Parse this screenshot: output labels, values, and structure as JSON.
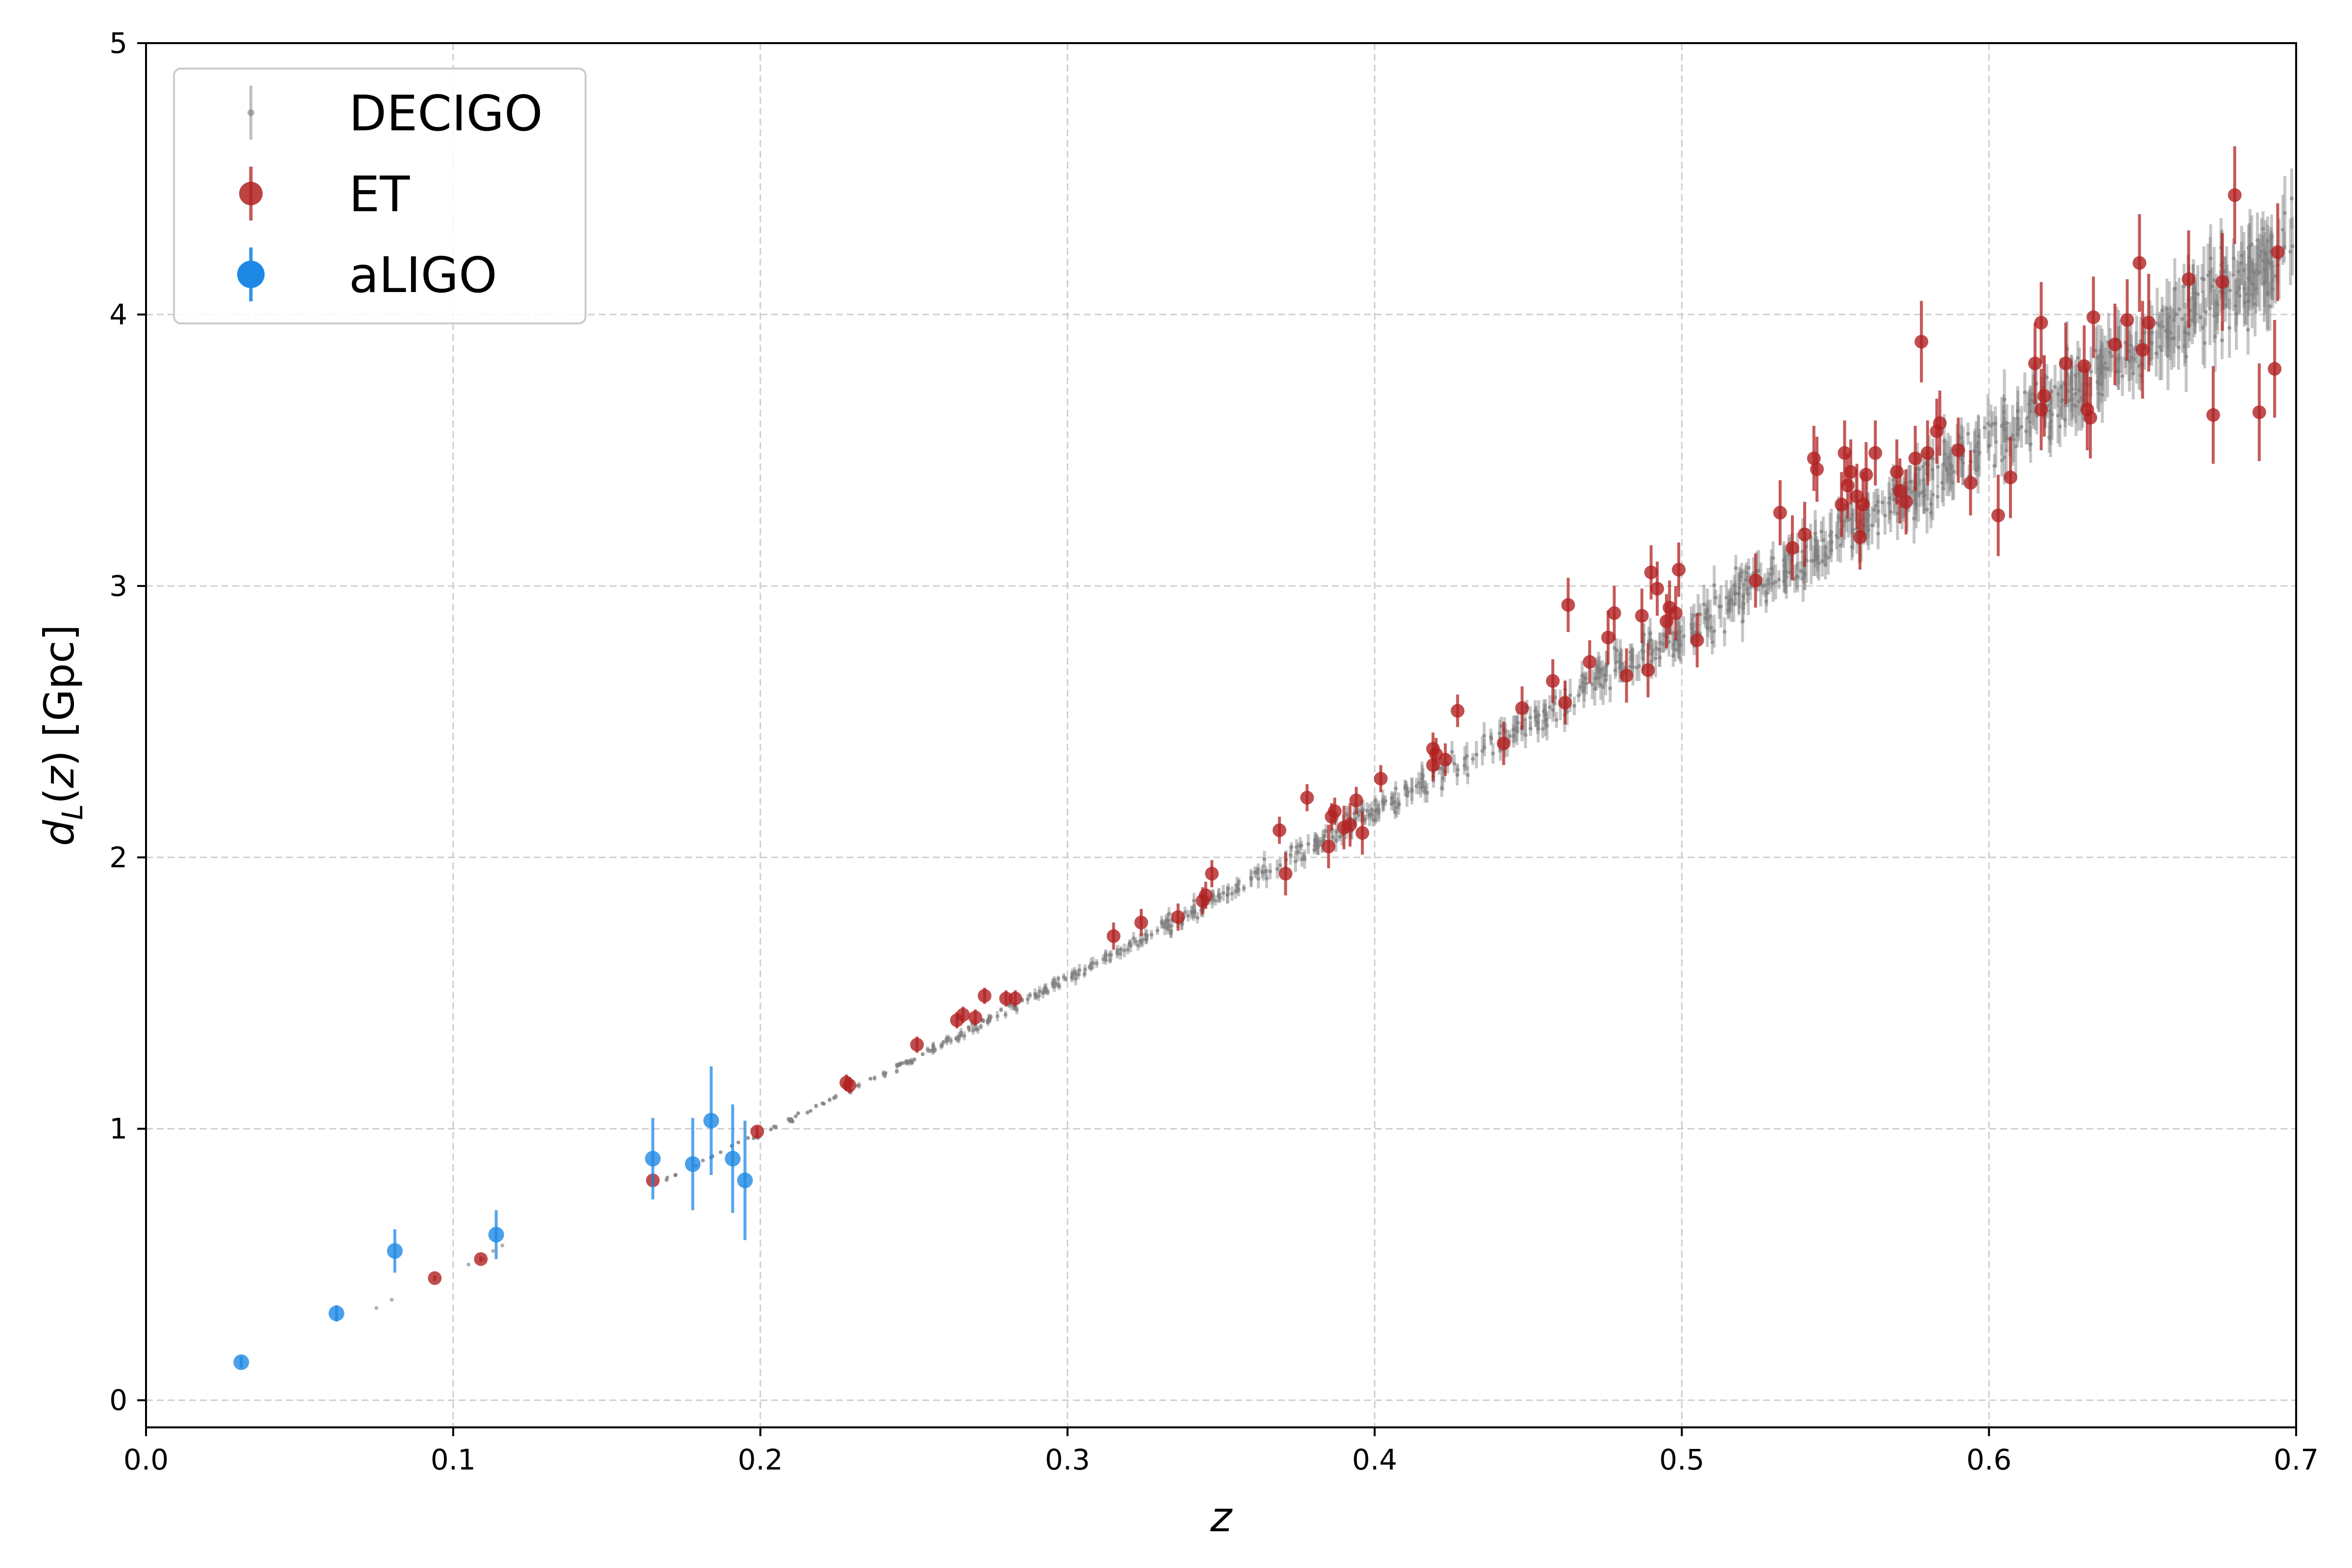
{
  "chart_data": {
    "type": "scatter",
    "xlabel": "z",
    "ylabel": "d_L(z) [Gpc]",
    "ylabel_parts": {
      "d": "d",
      "sub": "L",
      "rest1": "(",
      "z": "z",
      "rest2": ") [Gpc]"
    },
    "xlim": [
      0.0,
      0.7
    ],
    "ylim": [
      -0.1,
      5.0
    ],
    "xticks": [
      0.0,
      0.1,
      0.2,
      0.3,
      0.4,
      0.5,
      0.6,
      0.7
    ],
    "xtick_labels": [
      "0.0",
      "0.1",
      "0.2",
      "0.3",
      "0.4",
      "0.5",
      "0.6",
      "0.7"
    ],
    "yticks": [
      0,
      1,
      2,
      3,
      4,
      5
    ],
    "ytick_labels": [
      "0",
      "1",
      "2",
      "3",
      "4",
      "5"
    ],
    "grid": true,
    "legend_position": "top-left",
    "series": [
      {
        "name": "DECIGO",
        "color": "#7f7f7f",
        "marker": "small-dot",
        "z_range": [
          0.16,
          0.7
        ],
        "description_count": 1000
      },
      {
        "name": "ET",
        "color": "#b22222",
        "marker": "circle",
        "points": [
          [
            0.094,
            0.45,
            0.01
          ],
          [
            0.109,
            0.52,
            0.01
          ],
          [
            0.165,
            0.81,
            0.02
          ],
          [
            0.199,
            0.99,
            0.02
          ],
          [
            0.228,
            1.17,
            0.03
          ],
          [
            0.229,
            1.16,
            0.03
          ],
          [
            0.251,
            1.31,
            0.03
          ],
          [
            0.264,
            1.4,
            0.03
          ],
          [
            0.266,
            1.42,
            0.03
          ],
          [
            0.27,
            1.41,
            0.03
          ],
          [
            0.273,
            1.49,
            0.03
          ],
          [
            0.28,
            1.48,
            0.03
          ],
          [
            0.283,
            1.48,
            0.03
          ],
          [
            0.315,
            1.71,
            0.05
          ],
          [
            0.324,
            1.76,
            0.05
          ],
          [
            0.336,
            1.78,
            0.05
          ],
          [
            0.344,
            1.84,
            0.05
          ],
          [
            0.345,
            1.86,
            0.05
          ],
          [
            0.347,
            1.94,
            0.05
          ],
          [
            0.369,
            2.1,
            0.05
          ],
          [
            0.371,
            1.94,
            0.08
          ],
          [
            0.378,
            2.22,
            0.05
          ],
          [
            0.385,
            2.04,
            0.08
          ],
          [
            0.386,
            2.15,
            0.05
          ],
          [
            0.387,
            2.17,
            0.05
          ],
          [
            0.39,
            2.11,
            0.08
          ],
          [
            0.392,
            2.12,
            0.08
          ],
          [
            0.394,
            2.21,
            0.05
          ],
          [
            0.396,
            2.09,
            0.08
          ],
          [
            0.402,
            2.29,
            0.05
          ],
          [
            0.419,
            2.34,
            0.06
          ],
          [
            0.419,
            2.4,
            0.06
          ],
          [
            0.42,
            2.38,
            0.06
          ],
          [
            0.423,
            2.36,
            0.06
          ],
          [
            0.427,
            2.54,
            0.06
          ],
          [
            0.442,
            2.42,
            0.08
          ],
          [
            0.448,
            2.55,
            0.08
          ],
          [
            0.458,
            2.65,
            0.08
          ],
          [
            0.462,
            2.57,
            0.08
          ],
          [
            0.463,
            2.93,
            0.1
          ],
          [
            0.47,
            2.72,
            0.08
          ],
          [
            0.476,
            2.81,
            0.1
          ],
          [
            0.478,
            2.9,
            0.1
          ],
          [
            0.482,
            2.67,
            0.1
          ],
          [
            0.487,
            2.89,
            0.1
          ],
          [
            0.489,
            2.69,
            0.1
          ],
          [
            0.49,
            3.05,
            0.1
          ],
          [
            0.492,
            2.99,
            0.1
          ],
          [
            0.495,
            2.87,
            0.1
          ],
          [
            0.496,
            2.92,
            0.1
          ],
          [
            0.498,
            2.9,
            0.1
          ],
          [
            0.499,
            3.06,
            0.1
          ],
          [
            0.505,
            2.8,
            0.1
          ],
          [
            0.524,
            3.02,
            0.1
          ],
          [
            0.532,
            3.27,
            0.12
          ],
          [
            0.536,
            3.14,
            0.12
          ],
          [
            0.54,
            3.19,
            0.12
          ],
          [
            0.543,
            3.47,
            0.12
          ],
          [
            0.544,
            3.43,
            0.12
          ],
          [
            0.552,
            3.3,
            0.12
          ],
          [
            0.553,
            3.49,
            0.12
          ],
          [
            0.554,
            3.37,
            0.12
          ],
          [
            0.555,
            3.42,
            0.12
          ],
          [
            0.557,
            3.33,
            0.12
          ],
          [
            0.558,
            3.18,
            0.12
          ],
          [
            0.559,
            3.3,
            0.12
          ],
          [
            0.56,
            3.41,
            0.12
          ],
          [
            0.563,
            3.49,
            0.12
          ],
          [
            0.57,
            3.42,
            0.12
          ],
          [
            0.571,
            3.35,
            0.12
          ],
          [
            0.573,
            3.31,
            0.12
          ],
          [
            0.576,
            3.47,
            0.12
          ],
          [
            0.578,
            3.9,
            0.15
          ],
          [
            0.58,
            3.49,
            0.12
          ],
          [
            0.583,
            3.57,
            0.12
          ],
          [
            0.584,
            3.6,
            0.12
          ],
          [
            0.59,
            3.5,
            0.12
          ],
          [
            0.594,
            3.38,
            0.12
          ],
          [
            0.603,
            3.26,
            0.15
          ],
          [
            0.607,
            3.4,
            0.15
          ],
          [
            0.615,
            3.82,
            0.15
          ],
          [
            0.617,
            3.65,
            0.15
          ],
          [
            0.617,
            3.97,
            0.15
          ],
          [
            0.618,
            3.7,
            0.15
          ],
          [
            0.625,
            3.82,
            0.15
          ],
          [
            0.631,
            3.81,
            0.15
          ],
          [
            0.632,
            3.65,
            0.15
          ],
          [
            0.633,
            3.62,
            0.15
          ],
          [
            0.634,
            3.99,
            0.15
          ],
          [
            0.641,
            3.89,
            0.15
          ],
          [
            0.645,
            3.98,
            0.15
          ],
          [
            0.649,
            4.19,
            0.18
          ],
          [
            0.65,
            3.87,
            0.18
          ],
          [
            0.652,
            3.97,
            0.18
          ],
          [
            0.665,
            4.13,
            0.18
          ],
          [
            0.673,
            3.63,
            0.18
          ],
          [
            0.676,
            4.12,
            0.18
          ],
          [
            0.68,
            4.44,
            0.18
          ],
          [
            0.688,
            3.64,
            0.18
          ],
          [
            0.693,
            3.8,
            0.18
          ],
          [
            0.694,
            4.23,
            0.18
          ]
        ]
      },
      {
        "name": "aLIGO",
        "color": "#1e88e5",
        "marker": "circle",
        "points": [
          [
            0.031,
            0.14,
            0.02
          ],
          [
            0.062,
            0.32,
            0.03
          ],
          [
            0.081,
            0.55,
            0.08
          ],
          [
            0.114,
            0.61,
            0.09
          ],
          [
            0.165,
            0.89,
            0.15
          ],
          [
            0.178,
            0.87,
            0.17
          ],
          [
            0.184,
            1.03,
            0.2
          ],
          [
            0.191,
            0.89,
            0.2
          ],
          [
            0.195,
            0.81,
            0.22
          ]
        ]
      }
    ]
  }
}
